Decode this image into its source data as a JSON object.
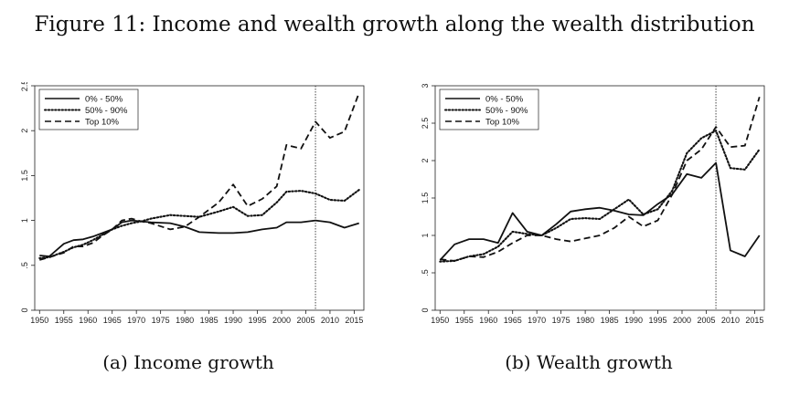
{
  "figure_title": "Figure 11: Income and wealth growth along the wealth distribution",
  "chart_data": [
    {
      "type": "line",
      "caption": "(a) Income growth",
      "xlabel": "",
      "ylabel": "",
      "xlim": [
        1949,
        2017
      ],
      "ylim": [
        0,
        2.5
      ],
      "x_ticks": [
        1950,
        1955,
        1960,
        1965,
        1970,
        1975,
        1980,
        1985,
        1990,
        1995,
        2000,
        2005,
        2010,
        2015
      ],
      "y_ticks": [
        0,
        0.5,
        1,
        1.5,
        2,
        2.5
      ],
      "y_tick_labels": [
        "0",
        ".5",
        "1",
        "1.5",
        "2",
        "2.5"
      ],
      "vline": 2007,
      "grid": false,
      "legend_position": "top-left",
      "series": [
        {
          "name": "0% - 50%",
          "style": "solid",
          "x": [
            1950,
            1952,
            1955,
            1957,
            1959,
            1961,
            1963,
            1965,
            1967,
            1969,
            1971,
            1973,
            1977,
            1980,
            1983,
            1987,
            1990,
            1993,
            1996,
            1999,
            2001,
            2004,
            2007,
            2010,
            2013,
            2016
          ],
          "y": [
            0.61,
            0.6,
            0.74,
            0.78,
            0.79,
            0.82,
            0.86,
            0.9,
            0.98,
            1.0,
            0.99,
            0.98,
            0.97,
            0.93,
            0.87,
            0.86,
            0.86,
            0.87,
            0.9,
            0.92,
            0.98,
            0.98,
            1.0,
            0.98,
            0.92,
            0.97
          ]
        },
        {
          "name": "50% - 90%",
          "style": "dotted",
          "x": [
            1950,
            1952,
            1955,
            1957,
            1959,
            1961,
            1963,
            1965,
            1967,
            1969,
            1971,
            1973,
            1977,
            1980,
            1983,
            1987,
            1990,
            1993,
            1996,
            1999,
            2001,
            2004,
            2007,
            2010,
            2013,
            2016
          ],
          "y": [
            0.58,
            0.59,
            0.65,
            0.7,
            0.73,
            0.78,
            0.84,
            0.9,
            0.94,
            0.97,
            0.99,
            1.02,
            1.06,
            1.05,
            1.04,
            1.1,
            1.15,
            1.05,
            1.06,
            1.2,
            1.32,
            1.33,
            1.3,
            1.23,
            1.22,
            1.34
          ]
        },
        {
          "name": "Top 10%",
          "style": "dashed",
          "x": [
            1950,
            1952,
            1955,
            1957,
            1959,
            1961,
            1963,
            1965,
            1967,
            1969,
            1971,
            1973,
            1977,
            1980,
            1983,
            1987,
            1990,
            1993,
            1996,
            1999,
            2001,
            2004,
            2007,
            2010,
            2013,
            2016
          ],
          "y": [
            0.56,
            0.59,
            0.64,
            0.71,
            0.71,
            0.75,
            0.83,
            0.9,
            1.0,
            1.02,
            0.99,
            0.97,
            0.9,
            0.93,
            1.04,
            1.2,
            1.4,
            1.16,
            1.24,
            1.38,
            1.84,
            1.8,
            2.1,
            1.92,
            1.99,
            2.42
          ]
        }
      ]
    },
    {
      "type": "line",
      "caption": "(b) Wealth growth",
      "xlabel": "",
      "ylabel": "",
      "xlim": [
        1949,
        2017
      ],
      "ylim": [
        0,
        3
      ],
      "x_ticks": [
        1950,
        1955,
        1960,
        1965,
        1970,
        1975,
        1980,
        1985,
        1990,
        1995,
        2000,
        2005,
        2010,
        2015
      ],
      "y_ticks": [
        0,
        0.5,
        1,
        1.5,
        2,
        2.5,
        3
      ],
      "y_tick_labels": [
        "0",
        ".5",
        "1",
        "1.5",
        "2",
        "2.5",
        "3"
      ],
      "vline": 2007,
      "grid": false,
      "legend_position": "top-left",
      "series": [
        {
          "name": "0% - 50%",
          "style": "solid",
          "x": [
            1950,
            1953,
            1956,
            1959,
            1962,
            1965,
            1968,
            1971,
            1974,
            1977,
            1980,
            1983,
            1986,
            1989,
            1992,
            1995,
            1998,
            2001,
            2004,
            2007,
            2010,
            2013,
            2016
          ],
          "y": [
            0.67,
            0.88,
            0.95,
            0.95,
            0.9,
            1.3,
            1.05,
            1.0,
            1.15,
            1.32,
            1.35,
            1.37,
            1.33,
            1.28,
            1.27,
            1.42,
            1.55,
            1.82,
            1.77,
            1.97,
            0.8,
            0.72,
            1.0
          ]
        },
        {
          "name": "50% - 90%",
          "style": "dotted",
          "x": [
            1950,
            1953,
            1956,
            1959,
            1962,
            1965,
            1968,
            1971,
            1974,
            1977,
            1980,
            1983,
            1986,
            1989,
            1992,
            1995,
            1998,
            2001,
            2004,
            2007,
            2010,
            2013,
            2016
          ],
          "y": [
            0.65,
            0.66,
            0.72,
            0.75,
            0.85,
            1.05,
            1.02,
            1.0,
            1.1,
            1.22,
            1.23,
            1.22,
            1.35,
            1.48,
            1.28,
            1.35,
            1.6,
            2.1,
            2.3,
            2.4,
            1.9,
            1.88,
            2.15
          ]
        },
        {
          "name": "Top 10%",
          "style": "dashed",
          "x": [
            1950,
            1953,
            1956,
            1959,
            1962,
            1965,
            1968,
            1971,
            1974,
            1977,
            1980,
            1983,
            1986,
            1989,
            1992,
            1995,
            1998,
            2001,
            2004,
            2007,
            2010,
            2013,
            2016
          ],
          "y": [
            0.68,
            0.66,
            0.72,
            0.71,
            0.78,
            0.9,
            1.0,
            1.0,
            0.95,
            0.92,
            0.96,
            1.0,
            1.1,
            1.25,
            1.12,
            1.2,
            1.55,
            2.0,
            2.15,
            2.45,
            2.18,
            2.2,
            2.85
          ]
        }
      ]
    }
  ]
}
